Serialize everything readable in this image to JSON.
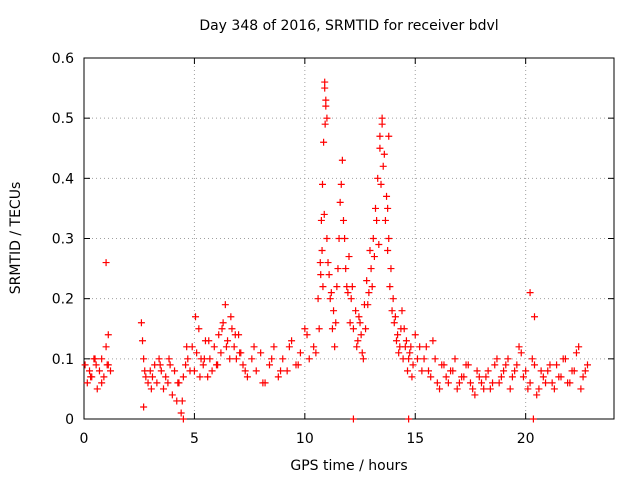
{
  "chart_data": {
    "type": "scatter",
    "title": "Day 348 of 2016, SRMTID for receiver bdvl",
    "xlabel": "GPS time / hours",
    "ylabel": "SRMTID / TECUs",
    "xlim": [
      0,
      24
    ],
    "ylim": [
      0,
      0.6
    ],
    "xticks": [
      0,
      5,
      10,
      15,
      20
    ],
    "xtick_labels": [
      "0",
      "5",
      "10",
      "15",
      "20"
    ],
    "yticks": [
      0,
      0.1,
      0.2,
      0.3,
      0.4,
      0.5,
      0.6
    ],
    "ytick_labels": [
      "0",
      "0.1",
      "0.2",
      "0.3",
      "0.4",
      "0.5",
      "0.6"
    ],
    "grid": true,
    "marker": "plus",
    "series_color": "#ff0000",
    "series": [
      {
        "name": "bdvl",
        "x": [
          0.05,
          0.15,
          0.25,
          0.35,
          0.45,
          0.55,
          0.6,
          0.7,
          0.8,
          0.9,
          1.0,
          1.05,
          1.1,
          1.2,
          2.6,
          2.7,
          2.8,
          2.9,
          3.0,
          3.1,
          3.2,
          3.3,
          3.4,
          3.5,
          3.6,
          3.7,
          3.8,
          3.9,
          4.0,
          4.1,
          4.2,
          4.3,
          4.4,
          4.5,
          4.6,
          4.7,
          4.8,
          4.9,
          5.0,
          5.1,
          5.2,
          5.3,
          5.4,
          5.5,
          5.6,
          5.7,
          5.8,
          5.9,
          6.0,
          6.1,
          6.2,
          6.3,
          6.4,
          6.5,
          6.6,
          6.7,
          6.8,
          6.9,
          7.0,
          7.1,
          7.2,
          7.4,
          7.6,
          7.8,
          8.0,
          8.2,
          8.4,
          8.6,
          8.8,
          9.0,
          9.2,
          9.4,
          9.6,
          9.8,
          10.0,
          10.2,
          10.4,
          10.6,
          10.7,
          10.75,
          10.8,
          10.85,
          10.9,
          10.95,
          11.0,
          11.1,
          11.2,
          11.3,
          11.4,
          11.5,
          11.6,
          11.7,
          11.8,
          11.9,
          12.0,
          12.1,
          12.2,
          12.3,
          12.4,
          12.5,
          12.6,
          12.7,
          12.8,
          12.9,
          13.0,
          13.1,
          13.2,
          13.3,
          13.4,
          13.5,
          13.6,
          13.7,
          13.8,
          13.9,
          14.0,
          14.1,
          14.2,
          14.3,
          14.4,
          14.5,
          14.6,
          14.7,
          14.8,
          14.9,
          15.0,
          15.2,
          15.4,
          15.6,
          15.8,
          16.0,
          16.2,
          16.4,
          16.6,
          16.8,
          17.0,
          17.2,
          17.4,
          17.6,
          17.8,
          18.0,
          18.2,
          18.4,
          18.6,
          18.8,
          19.0,
          19.2,
          19.4,
          19.6,
          19.8,
          20.0,
          20.2,
          20.4,
          20.6,
          20.8,
          21.0,
          21.2,
          21.4,
          21.6,
          21.8,
          22.0,
          22.2,
          22.4,
          22.6,
          22.8,
          0.3,
          0.5,
          0.8,
          1.1,
          2.65,
          2.75,
          3.05,
          3.45,
          3.85,
          4.25,
          4.45,
          4.65,
          5.05,
          5.25,
          5.45,
          5.65,
          6.05,
          6.25,
          6.45,
          6.65,
          6.85,
          7.05,
          7.3,
          7.7,
          8.1,
          8.5,
          8.9,
          9.3,
          9.7,
          10.1,
          10.5,
          10.65,
          10.72,
          10.78,
          10.82,
          10.88,
          10.92,
          11.05,
          11.15,
          11.25,
          11.35,
          11.45,
          11.55,
          11.65,
          11.75,
          11.85,
          11.95,
          12.05,
          12.15,
          12.35,
          12.45,
          12.55,
          12.65,
          12.75,
          12.85,
          12.95,
          13.05,
          13.15,
          13.25,
          13.35,
          13.45,
          13.55,
          13.65,
          13.75,
          13.85,
          13.95,
          14.05,
          14.15,
          14.25,
          14.35,
          14.45,
          14.55,
          14.65,
          14.75,
          14.85,
          15.1,
          15.3,
          15.5,
          15.7,
          15.9,
          16.1,
          16.3,
          16.5,
          16.7,
          16.9,
          17.1,
          17.3,
          17.5,
          17.7,
          17.9,
          18.1,
          18.3,
          18.5,
          18.7,
          18.9,
          19.1,
          19.3,
          19.5,
          19.7,
          19.9,
          20.1,
          20.3,
          20.5,
          20.7,
          20.9,
          21.1,
          21.3,
          21.5,
          21.7,
          21.9,
          22.1,
          22.3,
          22.5,
          22.7,
          1.0,
          2.7,
          4.5,
          12.2,
          14.7,
          20.2,
          20.4,
          20.35,
          13.75,
          13.8,
          10.95,
          10.9,
          11.0,
          13.4,
          13.5
        ],
        "y": [
          0.09,
          0.06,
          0.08,
          0.07,
          0.1,
          0.09,
          0.05,
          0.08,
          0.1,
          0.07,
          0.12,
          0.09,
          0.14,
          0.08,
          0.16,
          0.1,
          0.07,
          0.06,
          0.08,
          0.07,
          0.09,
          0.06,
          0.1,
          0.08,
          0.05,
          0.07,
          0.06,
          0.09,
          0.04,
          0.08,
          0.03,
          0.06,
          0.01,
          0.07,
          0.09,
          0.1,
          0.08,
          0.12,
          0.08,
          0.11,
          0.15,
          0.1,
          0.09,
          0.13,
          0.07,
          0.1,
          0.08,
          0.12,
          0.09,
          0.14,
          0.11,
          0.16,
          0.19,
          0.13,
          0.1,
          0.15,
          0.12,
          0.1,
          0.14,
          0.11,
          0.09,
          0.07,
          0.1,
          0.08,
          0.11,
          0.06,
          0.09,
          0.12,
          0.07,
          0.1,
          0.08,
          0.13,
          0.09,
          0.11,
          0.15,
          0.1,
          0.12,
          0.2,
          0.26,
          0.33,
          0.39,
          0.46,
          0.55,
          0.52,
          0.3,
          0.24,
          0.21,
          0.18,
          0.16,
          0.25,
          0.36,
          0.43,
          0.3,
          0.22,
          0.27,
          0.2,
          0.15,
          0.18,
          0.13,
          0.16,
          0.11,
          0.19,
          0.23,
          0.21,
          0.25,
          0.3,
          0.35,
          0.4,
          0.47,
          0.49,
          0.44,
          0.37,
          0.3,
          0.25,
          0.2,
          0.17,
          0.14,
          0.12,
          0.18,
          0.15,
          0.13,
          0.1,
          0.12,
          0.09,
          0.14,
          0.12,
          0.1,
          0.08,
          0.13,
          0.06,
          0.09,
          0.07,
          0.08,
          0.1,
          0.06,
          0.07,
          0.09,
          0.05,
          0.08,
          0.06,
          0.07,
          0.05,
          0.09,
          0.06,
          0.08,
          0.1,
          0.07,
          0.09,
          0.11,
          0.08,
          0.06,
          0.09,
          0.05,
          0.07,
          0.08,
          0.06,
          0.09,
          0.07,
          0.1,
          0.06,
          0.08,
          0.12,
          0.07,
          0.09,
          0.07,
          0.1,
          0.06,
          0.09,
          0.13,
          0.08,
          0.05,
          0.09,
          0.1,
          0.06,
          0.03,
          0.12,
          0.17,
          0.07,
          0.1,
          0.13,
          0.09,
          0.15,
          0.12,
          0.17,
          0.14,
          0.11,
          0.08,
          0.12,
          0.06,
          0.1,
          0.08,
          0.12,
          0.09,
          0.14,
          0.11,
          0.15,
          0.24,
          0.28,
          0.22,
          0.34,
          0.49,
          0.26,
          0.2,
          0.15,
          0.12,
          0.22,
          0.3,
          0.39,
          0.33,
          0.25,
          0.21,
          0.16,
          0.22,
          0.12,
          0.17,
          0.14,
          0.1,
          0.15,
          0.19,
          0.28,
          0.22,
          0.27,
          0.33,
          0.29,
          0.39,
          0.42,
          0.33,
          0.28,
          0.22,
          0.18,
          0.16,
          0.13,
          0.11,
          0.15,
          0.1,
          0.12,
          0.08,
          0.11,
          0.07,
          0.1,
          0.08,
          0.12,
          0.07,
          0.1,
          0.05,
          0.09,
          0.06,
          0.08,
          0.05,
          0.07,
          0.09,
          0.06,
          0.04,
          0.07,
          0.05,
          0.08,
          0.06,
          0.1,
          0.07,
          0.09,
          0.05,
          0.08,
          0.12,
          0.07,
          0.05,
          0.1,
          0.04,
          0.08,
          0.06,
          0.09,
          0.05,
          0.07,
          0.1,
          0.06,
          0.08,
          0.11,
          0.05,
          0.08,
          0.26,
          0.02,
          0.0,
          0.0,
          0.0,
          0.21,
          0.17,
          0.0,
          0.35,
          0.47,
          0.53,
          0.56,
          0.5,
          0.45,
          0.5
        ]
      }
    ]
  }
}
